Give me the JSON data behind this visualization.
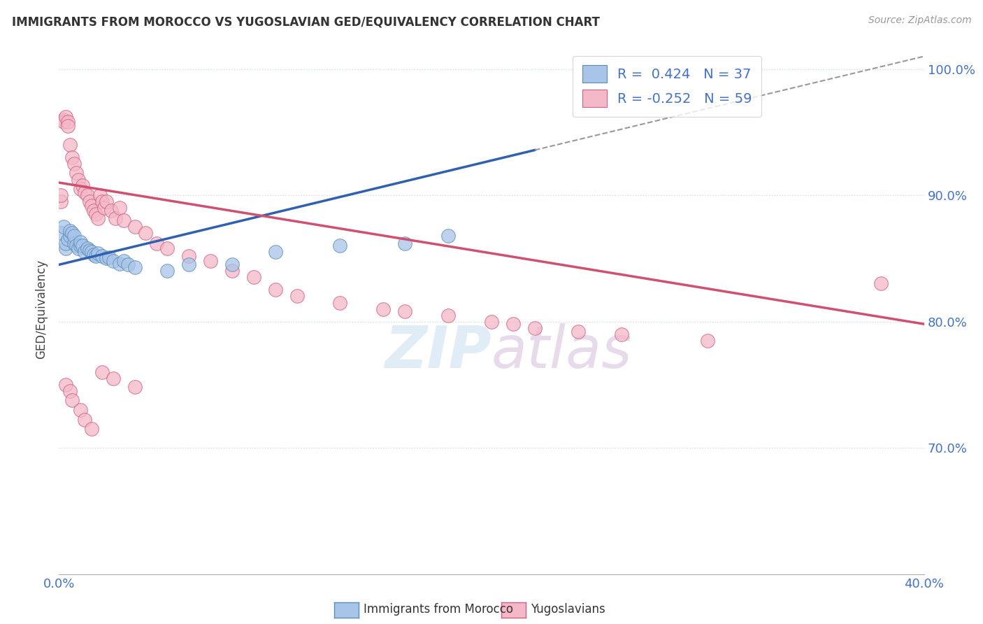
{
  "title": "IMMIGRANTS FROM MOROCCO VS YUGOSLAVIAN GED/EQUIVALENCY CORRELATION CHART",
  "source": "Source: ZipAtlas.com",
  "ylabel": "GED/Equivalency",
  "legend_label1": "Immigrants from Morocco",
  "legend_label2": "Yugoslavians",
  "R1": 0.424,
  "N1": 37,
  "R2": -0.252,
  "N2": 59,
  "color_morocco_fill": "#a8c4e8",
  "color_morocco_edge": "#5b8db8",
  "color_yugoslavia_fill": "#f5b8c8",
  "color_yugoslavia_edge": "#d06080",
  "color_blue_line": "#3060b0",
  "color_pink_line": "#d05070",
  "color_text_blue": "#4472c4",
  "color_grid": "#d0d8e0",
  "background": "#ffffff",
  "morocco_x": [
    0.001,
    0.002,
    0.003,
    0.003,
    0.004,
    0.005,
    0.005,
    0.006,
    0.007,
    0.007,
    0.008,
    0.009,
    0.01,
    0.01,
    0.011,
    0.012,
    0.013,
    0.014,
    0.015,
    0.016,
    0.017,
    0.018,
    0.02,
    0.022,
    0.023,
    0.025,
    0.028,
    0.03,
    0.032,
    0.035,
    0.05,
    0.06,
    0.08,
    0.1,
    0.13,
    0.16,
    0.18
  ],
  "morocco_y": [
    0.87,
    0.875,
    0.858,
    0.862,
    0.865,
    0.868,
    0.872,
    0.87,
    0.862,
    0.868,
    0.86,
    0.858,
    0.86,
    0.863,
    0.86,
    0.855,
    0.858,
    0.856,
    0.855,
    0.853,
    0.852,
    0.854,
    0.852,
    0.85,
    0.851,
    0.848,
    0.846,
    0.848,
    0.845,
    0.843,
    0.84,
    0.845,
    0.845,
    0.855,
    0.86,
    0.862,
    0.868
  ],
  "yugoslavia_x": [
    0.001,
    0.001,
    0.002,
    0.002,
    0.003,
    0.004,
    0.004,
    0.005,
    0.006,
    0.007,
    0.008,
    0.009,
    0.01,
    0.011,
    0.012,
    0.013,
    0.014,
    0.015,
    0.016,
    0.017,
    0.018,
    0.019,
    0.02,
    0.021,
    0.022,
    0.024,
    0.026,
    0.028,
    0.03,
    0.035,
    0.04,
    0.045,
    0.05,
    0.06,
    0.07,
    0.08,
    0.09,
    0.1,
    0.11,
    0.13,
    0.15,
    0.16,
    0.18,
    0.2,
    0.21,
    0.22,
    0.24,
    0.26,
    0.3,
    0.38,
    0.003,
    0.005,
    0.006,
    0.01,
    0.012,
    0.015,
    0.02,
    0.025,
    0.035
  ],
  "yugoslavia_y": [
    0.895,
    0.9,
    0.96,
    0.958,
    0.962,
    0.958,
    0.955,
    0.94,
    0.93,
    0.925,
    0.918,
    0.912,
    0.905,
    0.908,
    0.902,
    0.9,
    0.895,
    0.892,
    0.888,
    0.885,
    0.882,
    0.9,
    0.895,
    0.89,
    0.895,
    0.888,
    0.882,
    0.89,
    0.88,
    0.875,
    0.87,
    0.862,
    0.858,
    0.852,
    0.848,
    0.84,
    0.835,
    0.825,
    0.82,
    0.815,
    0.81,
    0.808,
    0.805,
    0.8,
    0.798,
    0.795,
    0.792,
    0.79,
    0.785,
    0.83,
    0.75,
    0.745,
    0.738,
    0.73,
    0.722,
    0.715,
    0.76,
    0.755,
    0.748
  ],
  "xlim": [
    0.0,
    0.4
  ],
  "ylim": [
    0.6,
    1.02
  ],
  "ytick_positions": [
    0.7,
    0.8,
    0.9,
    1.0
  ],
  "ytick_labels": [
    "70.0%",
    "80.0%",
    "90.0%",
    "100.0%"
  ],
  "xtick_positions": [
    0.0,
    0.1,
    0.2,
    0.3,
    0.4
  ],
  "blue_line_solid_end": 0.22,
  "blue_line_dash_start": 0.22,
  "blue_line_end": 0.4,
  "morocco_line_x0": 0.0,
  "morocco_line_y0": 0.845,
  "morocco_line_x1": 0.4,
  "morocco_line_y1": 1.01,
  "yugoslavia_line_x0": 0.0,
  "yugoslavia_line_y0": 0.91,
  "yugoslavia_line_x1": 0.4,
  "yugoslavia_line_y1": 0.798
}
